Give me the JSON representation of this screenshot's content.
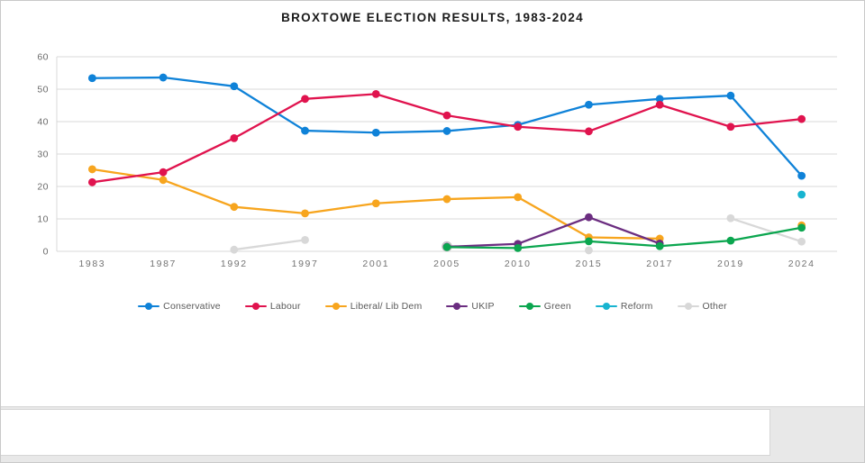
{
  "title": "BROXTOWE ELECTION RESULTS, 1983-2024",
  "chart_data": {
    "type": "line",
    "title": "BROXTOWE ELECTION RESULTS, 1983-2024",
    "categories": [
      "1983",
      "1987",
      "1992",
      "1997",
      "2001",
      "2005",
      "2010",
      "2015",
      "2017",
      "2019",
      "2024"
    ],
    "series": [
      {
        "name": "Conservative",
        "color": "#0f82d8",
        "values": [
          53.4,
          53.6,
          50.9,
          37.2,
          36.6,
          37.1,
          39.0,
          45.2,
          47.0,
          48.0,
          23.3
        ]
      },
      {
        "name": "Labour",
        "color": "#e0134e",
        "values": [
          21.3,
          24.4,
          34.9,
          47.0,
          48.5,
          41.9,
          38.4,
          37.0,
          45.2,
          38.4,
          40.8
        ]
      },
      {
        "name": "Liberal/ Lib Dem",
        "color": "#f7a51e",
        "values": [
          25.3,
          22.0,
          13.7,
          11.7,
          14.8,
          16.1,
          16.7,
          4.3,
          3.9,
          null,
          8.0
        ]
      },
      {
        "name": "UKIP",
        "color": "#6b2d80",
        "values": [
          null,
          null,
          null,
          null,
          null,
          1.4,
          2.3,
          10.5,
          2.4,
          null,
          null
        ]
      },
      {
        "name": "Green",
        "color": "#0ba64f",
        "values": [
          null,
          null,
          null,
          null,
          null,
          1.3,
          1.0,
          3.1,
          1.6,
          3.3,
          7.3
        ]
      },
      {
        "name": "Reform",
        "color": "#18b4d0",
        "values": [
          null,
          null,
          null,
          null,
          null,
          null,
          null,
          null,
          null,
          null,
          17.5
        ]
      },
      {
        "name": "Other",
        "color": "#d8d8d8",
        "values": [
          null,
          null,
          0.5,
          3.5,
          null,
          1.5,
          null,
          0.3,
          null,
          10.2,
          3.0
        ],
        "open_points": [
          5
        ]
      }
    ],
    "xlabel": "",
    "ylabel": "",
    "ylim": [
      0,
      60
    ],
    "yticks": [
      0,
      10,
      20,
      30,
      40,
      50,
      60
    ],
    "grid": true,
    "legend_position": "bottom",
    "gridline_color": "#d9d9d9",
    "tick_label_color": "#737373"
  }
}
